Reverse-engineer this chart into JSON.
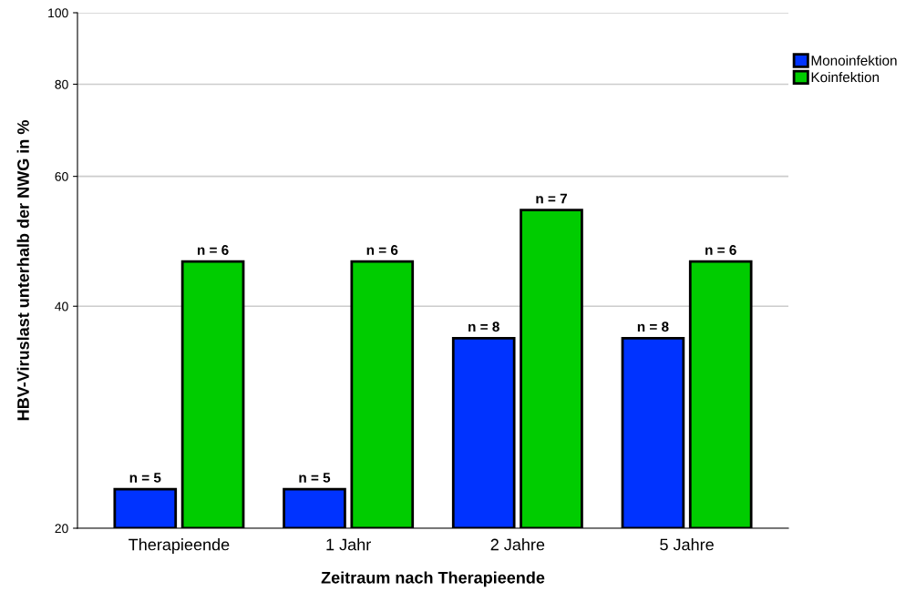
{
  "chart_data": {
    "type": "bar",
    "xlabel": "Zeitraum nach Therapieende",
    "ylabel": "HBV-Viruslast unterhalb der NWG in %",
    "categories": [
      "Therapieende",
      "1 Jahr",
      "2 Jahre",
      "5 Jahre"
    ],
    "series": [
      {
        "name": "Monoinfektion",
        "color": "#0033ff",
        "values": [
          22.6,
          22.6,
          36.2,
          36.2
        ]
      },
      {
        "name": "Koinfektion",
        "color": "#00cc00",
        "values": [
          46,
          46,
          54,
          46
        ]
      }
    ],
    "annotations": [
      {
        "text": "n = 5",
        "x": "Therapieende",
        "y": 22.6
      },
      {
        "text": "n = 6",
        "x": "Therapieende",
        "y": 46
      },
      {
        "text": "n = 5",
        "x": "1 Jahr",
        "y": 22.6
      },
      {
        "text": "n = 6",
        "x": "1 Jahr",
        "y": 46
      },
      {
        "text": "n = 8",
        "x": "2 Jahre",
        "y": 36.2
      },
      {
        "text": "n = 7",
        "x": "2 Jahre",
        "y": 54
      },
      {
        "text": "n = 8",
        "x": "5 Jahre",
        "y": 36.2
      },
      {
        "text": "n = 6",
        "x": "5 Jahre",
        "y": 46
      }
    ],
    "log": "y",
    "ylim": [
      20,
      100
    ],
    "yticks": [
      20,
      40,
      60,
      80,
      100
    ],
    "grid": "y",
    "legend": "top right"
  }
}
